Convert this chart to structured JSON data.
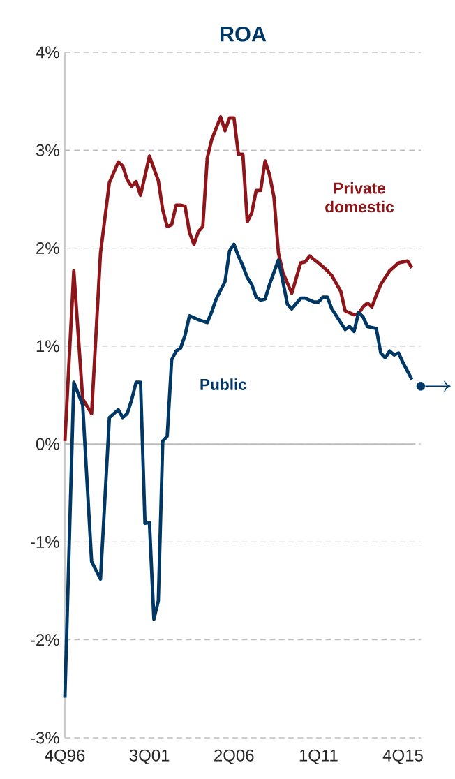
{
  "chart_data": {
    "type": "line",
    "title": "ROA",
    "xlim": [
      "1996-10",
      "2016-10"
    ],
    "xticks": [
      {
        "value": "1996-10",
        "label": "4Q96"
      },
      {
        "value": "2001-07",
        "label": "3Q01"
      },
      {
        "value": "2006-04",
        "label": "2Q06"
      },
      {
        "value": "2011-01",
        "label": "1Q11"
      },
      {
        "value": "2015-10",
        "label": "4Q15"
      }
    ],
    "ylim": [
      -3,
      4
    ],
    "yticks": [
      {
        "value": -3,
        "label": "-3%"
      },
      {
        "value": -2,
        "label": "-2%"
      },
      {
        "value": -1,
        "label": "-1%"
      },
      {
        "value": 0,
        "label": "0%"
      },
      {
        "value": 1,
        "label": "1%"
      },
      {
        "value": 2,
        "label": "2%"
      },
      {
        "value": 3,
        "label": "3%"
      },
      {
        "value": 4,
        "label": "4%"
      }
    ],
    "grid": "y",
    "legend": false,
    "series": [
      {
        "name": "Private domestic",
        "color": "#8e1519",
        "x": [
          "1996-10",
          "1997-04",
          "1997-10",
          "1998-04",
          "1998-10",
          "1999-04",
          "1999-10",
          "2000-01",
          "2000-04",
          "2000-07",
          "2000-10",
          "2001-01",
          "2001-07",
          "2002-01",
          "2002-04",
          "2002-07",
          "2002-10",
          "2003-01",
          "2003-04",
          "2003-07",
          "2003-10",
          "2004-01",
          "2004-04",
          "2004-07",
          "2004-10",
          "2005-01",
          "2005-07",
          "2005-10",
          "2006-01",
          "2006-04",
          "2006-07",
          "2006-10",
          "2007-01",
          "2007-04",
          "2007-07",
          "2007-10",
          "2008-01",
          "2008-04",
          "2008-07",
          "2008-10",
          "2009-01",
          "2009-07",
          "2010-01",
          "2010-04",
          "2010-07",
          "2011-01",
          "2011-07",
          "2011-10",
          "2012-04",
          "2012-07",
          "2013-01",
          "2013-04",
          "2013-07",
          "2013-10",
          "2014-01",
          "2014-04",
          "2014-07",
          "2015-01",
          "2015-07",
          "2016-01",
          "2016-04"
        ],
        "values": [
          0.03,
          1.77,
          0.46,
          0.31,
          1.95,
          2.67,
          2.88,
          2.84,
          2.7,
          2.63,
          2.68,
          2.54,
          2.94,
          2.69,
          2.39,
          2.22,
          2.24,
          2.44,
          2.44,
          2.43,
          2.16,
          2.04,
          2.17,
          2.22,
          2.92,
          3.11,
          3.34,
          3.2,
          3.33,
          3.33,
          2.96,
          2.96,
          2.27,
          2.36,
          2.59,
          2.59,
          2.89,
          2.75,
          2.52,
          1.95,
          1.75,
          1.54,
          1.85,
          1.86,
          1.92,
          1.85,
          1.77,
          1.72,
          1.56,
          1.36,
          1.32,
          1.33,
          1.4,
          1.44,
          1.4,
          1.52,
          1.63,
          1.77,
          1.85,
          1.87,
          1.8
        ]
      },
      {
        "name": "Public",
        "color": "#003865",
        "x": [
          "1996-10",
          "1997-04",
          "1997-10",
          "1998-04",
          "1998-10",
          "1999-04",
          "1999-10",
          "2000-01",
          "2000-04",
          "2000-07",
          "2000-10",
          "2001-01",
          "2001-04",
          "2001-07",
          "2001-10",
          "2002-01",
          "2002-04",
          "2002-07",
          "2002-10",
          "2003-01",
          "2003-04",
          "2003-07",
          "2003-10",
          "2004-04",
          "2004-10",
          "2005-01",
          "2005-04",
          "2005-10",
          "2006-01",
          "2006-04",
          "2006-07",
          "2006-10",
          "2007-01",
          "2007-04",
          "2007-07",
          "2007-10",
          "2008-01",
          "2008-04",
          "2008-10",
          "2009-01",
          "2009-04",
          "2009-07",
          "2010-01",
          "2010-04",
          "2010-10",
          "2011-01",
          "2011-04",
          "2011-07",
          "2011-10",
          "2012-07",
          "2012-10",
          "2013-01",
          "2013-04",
          "2013-07",
          "2013-10",
          "2014-04",
          "2014-07",
          "2014-10",
          "2015-01",
          "2015-04",
          "2015-07",
          "2015-10",
          "2016-04"
        ],
        "values": [
          -2.59,
          0.63,
          0.4,
          -1.2,
          -1.38,
          0.27,
          0.35,
          0.27,
          0.31,
          0.45,
          0.63,
          0.63,
          -0.81,
          -0.8,
          -1.79,
          -1.6,
          0.03,
          0.08,
          0.86,
          0.95,
          0.98,
          1.11,
          1.31,
          1.27,
          1.24,
          1.35,
          1.48,
          1.66,
          1.97,
          2.04,
          1.92,
          1.82,
          1.7,
          1.63,
          1.5,
          1.47,
          1.48,
          1.63,
          1.88,
          1.66,
          1.43,
          1.38,
          1.49,
          1.49,
          1.45,
          1.45,
          1.5,
          1.5,
          1.38,
          1.17,
          1.2,
          1.15,
          1.34,
          1.3,
          1.2,
          1.18,
          0.93,
          0.88,
          0.95,
          0.91,
          0.93,
          0.83,
          0.66
        ]
      },
      {
        "type": "scatter",
        "color": "#003865",
        "x": [
          "2016-10"
        ],
        "values": [
          0.59
        ]
      }
    ]
  }
}
